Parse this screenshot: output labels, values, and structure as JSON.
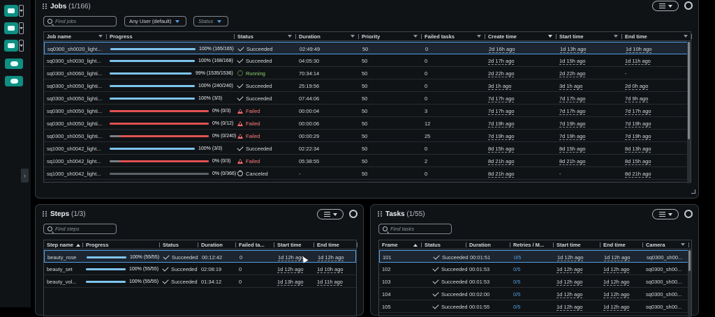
{
  "colors": {
    "accent": "#539fe5",
    "brand": "#0e8f82",
    "success": "#7ec4ee",
    "failed": "#e05252",
    "running": "#8fd46f",
    "neutral": "#5a6168"
  },
  "jobs": {
    "title": "Jobs",
    "count": "(1/166)",
    "search_placeholder": "Find jobs",
    "user_filter": "Any User (default)",
    "status_filter": "Status",
    "columns": [
      "Job name",
      "Progress",
      "Status",
      "Duration",
      "Priority",
      "Failed tasks",
      "Create time",
      "Start time",
      "End time"
    ],
    "rows": [
      {
        "name": "sq0300_sh0020_light...",
        "progress": 1.0,
        "pct": "100%",
        "count": "(165/165)",
        "bar": "success",
        "status": "Succeeded",
        "duration": "02:49:49",
        "priority": "50",
        "failed": "0",
        "create": "2d 16h ago",
        "start": "1d 13h ago",
        "end": "1d 10h ago"
      },
      {
        "name": "sq0300_sh0030_light...",
        "progress": 1.0,
        "pct": "100%",
        "count": "(168/168)",
        "bar": "success",
        "status": "Succeeded",
        "duration": "04:05:30",
        "priority": "50",
        "failed": "0",
        "create": "2d 17h ago",
        "start": "1d 15h ago",
        "end": "1d 11h ago"
      },
      {
        "name": "sq0300_sh0060_lighti...",
        "progress": 0.99,
        "pct": "99%",
        "count": "(1535/1536)",
        "bar": "success",
        "status": "Running",
        "duration": "70:34:14",
        "priority": "50",
        "failed": "0",
        "create": "2d 22h ago",
        "start": "2d 22h ago",
        "end": "-"
      },
      {
        "name": "sq0300_sh0050_lighti...",
        "progress": 1.0,
        "pct": "100%",
        "count": "(240/240)",
        "bar": "success",
        "status": "Succeeded",
        "duration": "25:19:56",
        "priority": "50",
        "failed": "0",
        "create": "3d 1h ago",
        "start": "3d 1h ago",
        "end": "2d 0h ago"
      },
      {
        "name": "sq0300_sh0050_lighti...",
        "progress": 1.0,
        "pct": "100%",
        "count": "(3/3)",
        "bar": "success",
        "status": "Succeeded",
        "duration": "07:44:06",
        "priority": "50",
        "failed": "0",
        "create": "7d 17h ago",
        "start": "7d 17h ago",
        "end": "7d 9h ago"
      },
      {
        "name": "sq0300_sh0050_lighti...",
        "progress": 0.0,
        "pct": "0%",
        "count": "(0/3)",
        "bar": "failed",
        "status": "Failed",
        "duration": "00:00:04",
        "priority": "50",
        "failed": "3",
        "create": "7d 17h ago",
        "start": "7d 17h ago",
        "end": "7d 17h ago"
      },
      {
        "name": "sq0300_sh0050_lighti...",
        "progress": 0.0,
        "pct": "0%",
        "count": "(0/12)",
        "bar": "failed",
        "status": "Failed",
        "duration": "00:00:06",
        "priority": "50",
        "failed": "12",
        "create": "7d 19h ago",
        "start": "7d 19h ago",
        "end": "7d 19h ago"
      },
      {
        "name": "sq0300_sh0050_lighti...",
        "progress": 0.0,
        "pct": "0%",
        "count": "(0/240)",
        "bar": "partial-failed",
        "status": "Failed",
        "duration": "00:00:29",
        "priority": "50",
        "failed": "25",
        "create": "7d 19h ago",
        "start": "7d 19h ago",
        "end": "7d 19h ago"
      },
      {
        "name": "sq1000_sh0042_light...",
        "progress": 1.0,
        "pct": "100%",
        "count": "(3/3)",
        "bar": "success",
        "status": "Succeeded",
        "duration": "02:22:34",
        "priority": "50",
        "failed": "0",
        "create": "8d 15h ago",
        "start": "8d 15h ago",
        "end": "8d 13h ago"
      },
      {
        "name": "sq1000_sh0042_light...",
        "progress": 0.0,
        "pct": "0%",
        "count": "(0/3)",
        "bar": "partial-failed",
        "status": "Failed",
        "duration": "05:38:55",
        "priority": "50",
        "failed": "2",
        "create": "8d 21h ago",
        "start": "8d 21h ago",
        "end": "8d 15h ago"
      },
      {
        "name": "sq1000_sh0042_light...",
        "progress": 0.0,
        "pct": "0%",
        "count": "(0/366)",
        "bar": "neutral",
        "status": "Canceled",
        "duration": "-",
        "priority": "50",
        "failed": "0",
        "create": "8d 21h ago",
        "start": "-",
        "end": "8d 21h ago"
      }
    ]
  },
  "steps": {
    "title": "Steps",
    "count": "(1/3)",
    "search_placeholder": "Find steps",
    "columns": [
      "Step name",
      "Progress",
      "Status",
      "Duration",
      "Failed ta...",
      "Start time",
      "End time"
    ],
    "rows": [
      {
        "name": "beauty_rose",
        "progress": 1.0,
        "pct": "100%",
        "count": "(55/55)",
        "status": "Succeeded",
        "duration": "00:12:42",
        "failed": "0",
        "start": "1d 12h ago",
        "end": "1d 12h ago"
      },
      {
        "name": "beauty_set",
        "progress": 1.0,
        "pct": "100%",
        "count": "(55/55)",
        "status": "Succeeded",
        "duration": "02:08:19",
        "failed": "0",
        "start": "1d 12h ago",
        "end": "1d 10h ago"
      },
      {
        "name": "beauty_vol...",
        "progress": 1.0,
        "pct": "100%",
        "count": "(55/55)",
        "status": "Succeeded",
        "duration": "01:34:12",
        "failed": "0",
        "start": "1d 13h ago",
        "end": "1d 11h ago"
      }
    ]
  },
  "tasks": {
    "title": "Tasks",
    "count": "(1/55)",
    "search_placeholder": "Find tasks",
    "columns": [
      "Frame",
      "Status",
      "Duration",
      "Retries / M...",
      "Start time",
      "End time",
      "Camera"
    ],
    "rows": [
      {
        "frame": "101",
        "status": "Succeeded",
        "duration": "00:01:51",
        "retries": "0/5",
        "start": "1d 12h ago",
        "end": "1d 12h ago",
        "camera": "sq0300_sh00..."
      },
      {
        "frame": "102",
        "status": "Succeeded",
        "duration": "00:01:53",
        "retries": "0/5",
        "start": "1d 12h ago",
        "end": "1d 12h ago",
        "camera": "sq0300_sh00..."
      },
      {
        "frame": "103",
        "status": "Succeeded",
        "duration": "00:01:53",
        "retries": "0/5",
        "start": "1d 12h ago",
        "end": "1d 12h ago",
        "camera": "sq0300_sh00..."
      },
      {
        "frame": "104",
        "status": "Succeeded",
        "duration": "00:02:00",
        "retries": "0/5",
        "start": "1d 12h ago",
        "end": "1d 12h ago",
        "camera": "sq0300_sh00..."
      },
      {
        "frame": "105",
        "status": "Succeeded",
        "duration": "00:01:55",
        "retries": "0/5",
        "start": "1d 12h ago",
        "end": "1d 12h ago",
        "camera": "sq0300_sh00..."
      }
    ]
  },
  "rail": {
    "icons": [
      "cloud-icon",
      "folder-icon",
      "upload-icon",
      "monitor-cloud-icon",
      "job-monitor-icon"
    ]
  }
}
